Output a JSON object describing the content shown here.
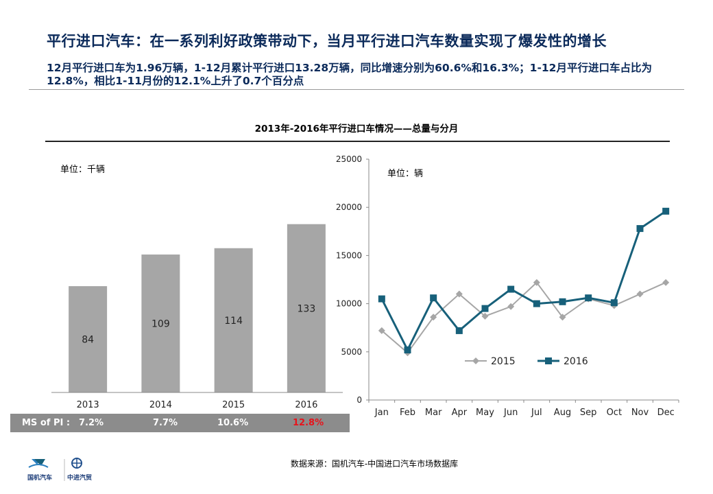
{
  "header": {
    "title": "平行进口汽车：在一系列利好政策带动下，当月平行进口汽车数量实现了爆发性的增长",
    "subtitle": "12月平行进口车为1.96万辆，1-12月累计平行进口13.28万辆，同比增速分别为60.6%和16.3%；1-12月平行进口车占比为12.8%，相比1-11月份的12.1%上升了0.7个百分点"
  },
  "chart_title": "2013年-2016年平行进口车情况——总量与分月",
  "ms": {
    "label": "MS of PI :",
    "values": [
      "7.2%",
      "7.7%",
      "10.6%",
      "12.8%"
    ],
    "highlight_color": "#e8131b"
  },
  "source": "数据来源：国机汽车-中国进口汽车市场数据库",
  "logos": {
    "left_text": "国机汽车",
    "right_text": "中进汽贸"
  },
  "chart_data": [
    {
      "type": "bar",
      "unit_label": "单位：千辆",
      "categories": [
        "2013",
        "2014",
        "2015",
        "2016"
      ],
      "values": [
        84,
        109,
        114,
        133
      ],
      "data_labels": [
        "84",
        "109",
        "114",
        "133"
      ],
      "ylim": [
        0,
        180
      ],
      "bar_color": "#a6a6a6",
      "grid": false
    },
    {
      "type": "line",
      "unit_label": "单位：辆",
      "x": [
        "Jan",
        "Feb",
        "Mar",
        "Apr",
        "May",
        "Jun",
        "Jul",
        "Aug",
        "Sep",
        "Oct",
        "Nov",
        "Dec"
      ],
      "y_ticks": [
        "0",
        "5000",
        "10000",
        "15000",
        "20000",
        "25000"
      ],
      "ylim": [
        0,
        25000
      ],
      "grid": false,
      "legend_position": "bottom-left",
      "series": [
        {
          "name": "2015",
          "color": "#a6a6a6",
          "marker": "diamond",
          "values": [
            7200,
            4900,
            8600,
            11000,
            8700,
            9700,
            12200,
            8600,
            10500,
            9800,
            11000,
            12200
          ]
        },
        {
          "name": "2016",
          "color": "#17607a",
          "marker": "square",
          "values": [
            10500,
            5200,
            10600,
            7200,
            9500,
            11500,
            10000,
            10200,
            10600,
            10100,
            17800,
            19600
          ]
        }
      ]
    }
  ]
}
